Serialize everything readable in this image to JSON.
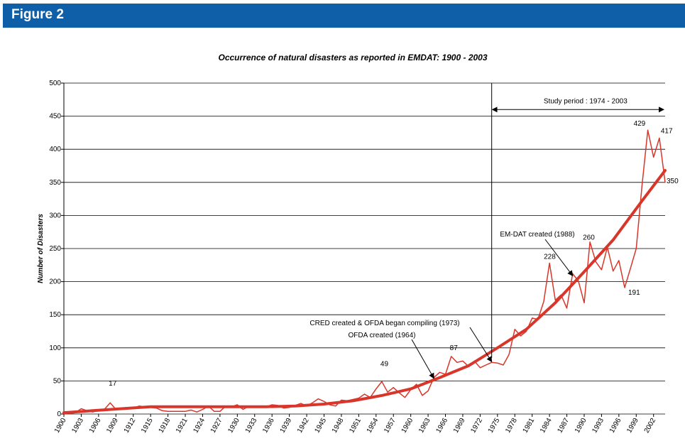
{
  "figure_label": "Figure 2",
  "colors": {
    "header": "#0f5fa8",
    "series": "#d9362b",
    "grid": "#000000"
  },
  "chart_data": {
    "type": "line",
    "title": "Occurrence of natural disasters as reported in EMDAT: 1900 - 2003",
    "xlabel": "",
    "ylabel": "Number of Disasters",
    "ylim": [
      0,
      500
    ],
    "xlim": [
      1900,
      2003
    ],
    "yticks": [
      0,
      50,
      100,
      150,
      200,
      250,
      300,
      350,
      400,
      450,
      500
    ],
    "xticks": [
      1900,
      1903,
      1906,
      1909,
      1912,
      1915,
      1918,
      1921,
      1924,
      1927,
      1930,
      1933,
      1936,
      1939,
      1942,
      1945,
      1948,
      1951,
      1954,
      1957,
      1960,
      1963,
      1966,
      1969,
      1972,
      1975,
      1978,
      1981,
      1984,
      1987,
      1990,
      1993,
      1996,
      1999,
      2002
    ],
    "grid": "horizontal",
    "series": [
      {
        "name": "",
        "values": [
          [
            1900,
            4
          ],
          [
            1901,
            1
          ],
          [
            1902,
            2
          ],
          [
            1903,
            8
          ],
          [
            1904,
            5
          ],
          [
            1905,
            3
          ],
          [
            1906,
            6
          ],
          [
            1907,
            7
          ],
          [
            1908,
            17
          ],
          [
            1909,
            7
          ],
          [
            1910,
            8
          ],
          [
            1911,
            10
          ],
          [
            1912,
            9
          ],
          [
            1913,
            12
          ],
          [
            1914,
            11
          ],
          [
            1915,
            10
          ],
          [
            1916,
            9
          ],
          [
            1917,
            5
          ],
          [
            1918,
            4
          ],
          [
            1919,
            4
          ],
          [
            1920,
            4
          ],
          [
            1921,
            4
          ],
          [
            1922,
            6
          ],
          [
            1923,
            3
          ],
          [
            1924,
            7
          ],
          [
            1925,
            12
          ],
          [
            1926,
            4
          ],
          [
            1927,
            4
          ],
          [
            1928,
            12
          ],
          [
            1929,
            11
          ],
          [
            1930,
            14
          ],
          [
            1931,
            7
          ],
          [
            1932,
            12
          ],
          [
            1933,
            11
          ],
          [
            1934,
            10
          ],
          [
            1935,
            11
          ],
          [
            1936,
            14
          ],
          [
            1937,
            13
          ],
          [
            1938,
            9
          ],
          [
            1939,
            10
          ],
          [
            1940,
            13
          ],
          [
            1941,
            16
          ],
          [
            1942,
            12
          ],
          [
            1943,
            17
          ],
          [
            1944,
            23
          ],
          [
            1945,
            19
          ],
          [
            1946,
            14
          ],
          [
            1947,
            12
          ],
          [
            1948,
            21
          ],
          [
            1949,
            20
          ],
          [
            1950,
            22
          ],
          [
            1951,
            24
          ],
          [
            1952,
            30
          ],
          [
            1953,
            25
          ],
          [
            1954,
            38
          ],
          [
            1955,
            49
          ],
          [
            1956,
            33
          ],
          [
            1957,
            40
          ],
          [
            1958,
            32
          ],
          [
            1959,
            25
          ],
          [
            1960,
            37
          ],
          [
            1961,
            45
          ],
          [
            1962,
            28
          ],
          [
            1963,
            35
          ],
          [
            1964,
            55
          ],
          [
            1965,
            63
          ],
          [
            1966,
            60
          ],
          [
            1967,
            87
          ],
          [
            1968,
            78
          ],
          [
            1969,
            80
          ],
          [
            1970,
            72
          ],
          [
            1971,
            80
          ],
          [
            1972,
            70
          ],
          [
            1973,
            74
          ],
          [
            1974,
            78
          ],
          [
            1975,
            77
          ],
          [
            1976,
            74
          ],
          [
            1977,
            90
          ],
          [
            1978,
            128
          ],
          [
            1979,
            118
          ],
          [
            1980,
            125
          ],
          [
            1981,
            145
          ],
          [
            1982,
            143
          ],
          [
            1983,
            170
          ],
          [
            1984,
            228
          ],
          [
            1985,
            172
          ],
          [
            1986,
            180
          ],
          [
            1987,
            160
          ],
          [
            1988,
            212
          ],
          [
            1989,
            201
          ],
          [
            1990,
            168
          ],
          [
            1991,
            260
          ],
          [
            1992,
            230
          ],
          [
            1993,
            218
          ],
          [
            1994,
            252
          ],
          [
            1995,
            216
          ],
          [
            1996,
            232
          ],
          [
            1997,
            191
          ],
          [
            1998,
            220
          ],
          [
            1999,
            250
          ],
          [
            2000,
            345
          ],
          [
            2001,
            429
          ],
          [
            2002,
            388
          ],
          [
            2003,
            417
          ],
          [
            2004,
            350
          ]
        ]
      },
      {
        "name": "",
        "values": [
          [
            1900,
            2
          ],
          [
            1905,
            5
          ],
          [
            1910,
            8
          ],
          [
            1915,
            11
          ],
          [
            1920,
            11
          ],
          [
            1925,
            11
          ],
          [
            1930,
            11
          ],
          [
            1935,
            11
          ],
          [
            1940,
            12
          ],
          [
            1945,
            15
          ],
          [
            1950,
            20
          ],
          [
            1955,
            28
          ],
          [
            1960,
            38
          ],
          [
            1965,
            55
          ],
          [
            1970,
            73
          ],
          [
            1975,
            100
          ],
          [
            1980,
            128
          ],
          [
            1985,
            168
          ],
          [
            1990,
            215
          ],
          [
            1995,
            263
          ],
          [
            2000,
            322
          ],
          [
            2004,
            368
          ]
        ]
      }
    ],
    "data_labels": [
      {
        "x": 1908,
        "y": 17,
        "text": "17",
        "dx": -2,
        "dy": -24
      },
      {
        "x": 1955,
        "y": 49,
        "text": "49",
        "dx": -2,
        "dy": -22
      },
      {
        "x": 1967,
        "y": 87,
        "text": "87",
        "dx": -2,
        "dy": -9
      },
      {
        "x": 1984,
        "y": 228,
        "text": "228",
        "dx": -8,
        "dy": -6
      },
      {
        "x": 1991,
        "y": 260,
        "text": "260",
        "dx": -10,
        "dy": -3
      },
      {
        "x": 1997,
        "y": 191,
        "text": "191",
        "dx": 5,
        "dy": 10
      },
      {
        "x": 2001,
        "y": 429,
        "text": "429",
        "dx": -20,
        "dy": -6
      },
      {
        "x": 2003,
        "y": 417,
        "text": "417",
        "dx": 2,
        "dy": -7
      },
      {
        "x": 2004,
        "y": 350,
        "text": "350",
        "dx": 2,
        "dy": 1
      }
    ],
    "annotations": [
      {
        "text": "CRED created & OFDA began compiling (1973)",
        "arrow_to": [
          1974,
          79
        ]
      },
      {
        "text": "OFDA created (1964)",
        "arrow_to": [
          1964,
          54
        ]
      },
      {
        "text": "EM-DAT created (1988)",
        "arrow_to": [
          1988,
          209
        ]
      },
      {
        "text": "Study period : 1974 - 2003",
        "range": [
          1974,
          2004
        ]
      }
    ],
    "vertical_marker_year": 1974
  }
}
